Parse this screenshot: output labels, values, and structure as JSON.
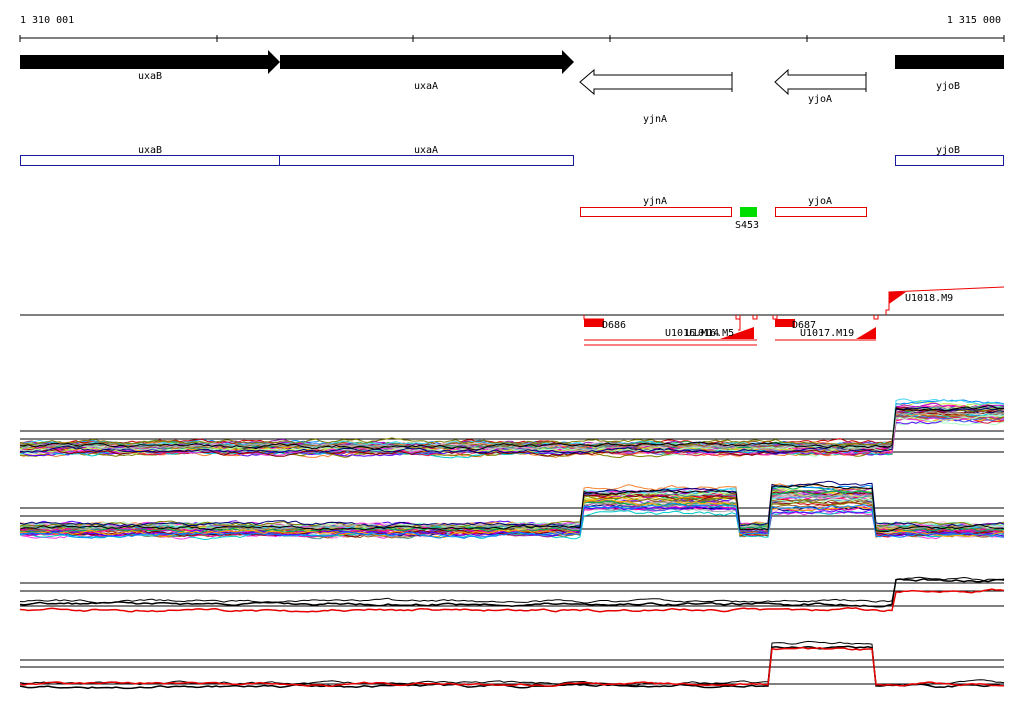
{
  "ruler": {
    "start_label": "1 310 001",
    "end_label": "1 315 000"
  },
  "genes_top": [
    {
      "name": "uxaB",
      "strand": "+"
    },
    {
      "name": "uxaA",
      "strand": "+"
    },
    {
      "name": "yjnA",
      "strand": "-"
    },
    {
      "name": "yjoA",
      "strand": "-"
    },
    {
      "name": "yjoB",
      "strand": "+"
    }
  ],
  "gene_boxes": [
    "uxaB",
    "uxaA",
    "yjoB"
  ],
  "antisense_boxes": [
    "yjnA",
    "yjoA"
  ],
  "small_feature": {
    "label": "S453",
    "color": "#00dd00"
  },
  "segments": [
    "D686",
    "U1016.M14",
    "U1016.M5",
    "D687",
    "U1017.M19",
    "U1018.M9"
  ],
  "colors": {
    "gene": "#000000",
    "box_blue": "#1a1a9e",
    "box_red": "#e60000",
    "segment_red": "#ee0000"
  },
  "tracks": [
    "multi-condition-top",
    "multi-condition-bottom",
    "summary-top",
    "summary-bottom"
  ]
}
